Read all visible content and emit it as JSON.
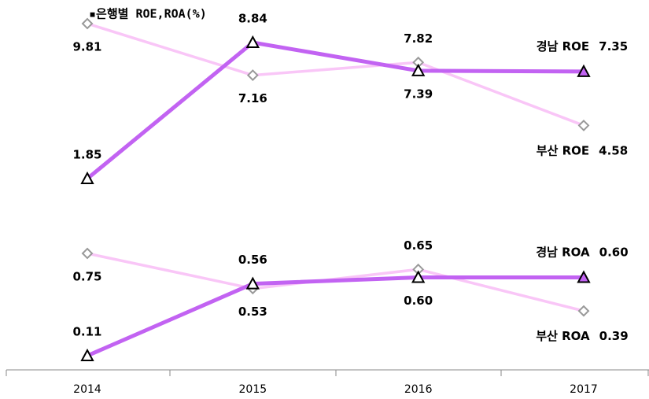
{
  "chart_data": [
    {
      "type": "line",
      "title": "▪은행별 ROE,ROA(%)",
      "categories": [
        "2014",
        "2015",
        "2016",
        "2017"
      ],
      "series": [
        {
          "name": "경남 ROE",
          "color": "#c263f2",
          "values": [
            1.85,
            8.84,
            7.39,
            7.35
          ]
        },
        {
          "name": "부산 ROE",
          "color": "#f9c6f7",
          "values": [
            9.81,
            7.16,
            7.82,
            4.58
          ]
        }
      ]
    },
    {
      "type": "line",
      "series": [
        {
          "name": "경남 ROA",
          "color": "#c263f2",
          "values": [
            0.11,
            0.56,
            0.6,
            0.6
          ],
          "value_labels": [
            "0.11",
            "0.56",
            "0.60",
            "0.60"
          ]
        },
        {
          "name": "부산 ROA",
          "color": "#f9c6f7",
          "values": [
            0.75,
            0.53,
            0.65,
            0.39
          ],
          "value_labels": [
            "0.75",
            "0.53",
            "0.65",
            "0.39"
          ]
        }
      ]
    }
  ]
}
